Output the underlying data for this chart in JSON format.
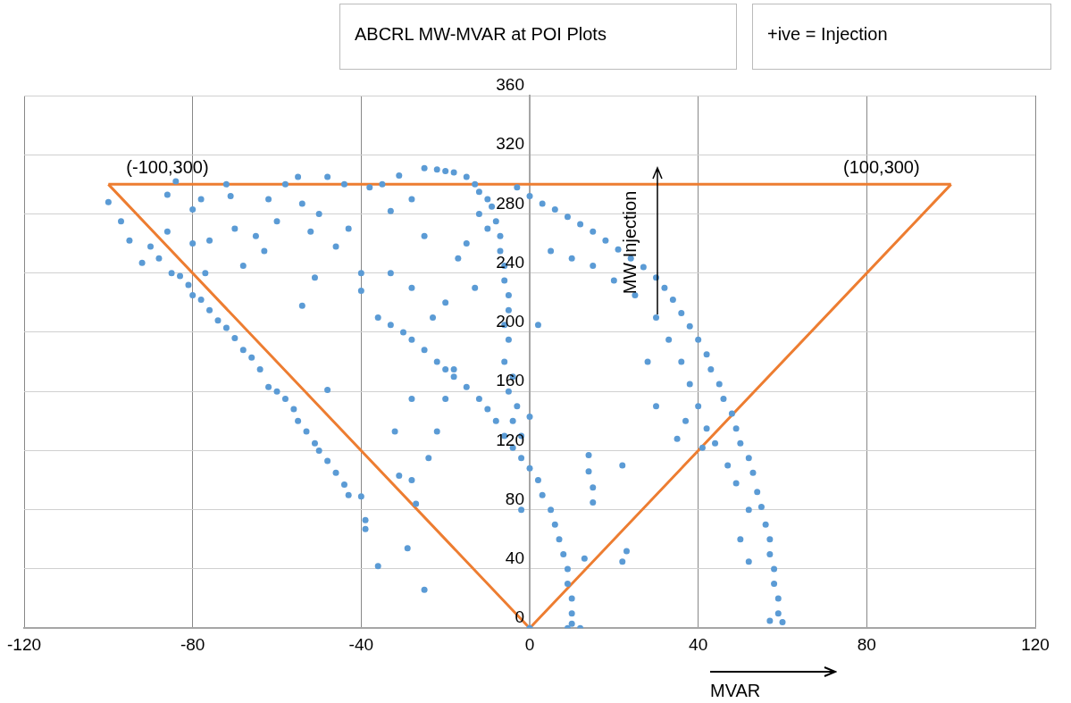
{
  "chart_data": {
    "type": "scatter",
    "title": "ABCRL MW-MVAR at POI Plots",
    "xlabel": "MVAR",
    "ylabel": "MW Injection",
    "annotations": [
      "+ive = Injection",
      {
        "text": "(-100,300)",
        "x": -100,
        "y": 300
      },
      {
        "text": "(100,300)",
        "x": 100,
        "y": 300
      }
    ],
    "xlim": [
      -120,
      120
    ],
    "xticks": [
      -120,
      -80,
      -40,
      0,
      40,
      80,
      120
    ],
    "ylim": [
      0,
      360
    ],
    "yticks": [
      0,
      40,
      80,
      120,
      160,
      200,
      240,
      280,
      320,
      360
    ],
    "grid": true,
    "marker": "circle",
    "series": [
      {
        "color": "#5b9bd5",
        "x": [
          -100,
          -97,
          -95,
          -92,
          -90,
          -88,
          -86,
          -85,
          -83,
          -81,
          -80,
          -78,
          -76,
          -74,
          -72,
          -70,
          -68,
          -66,
          -64,
          -62,
          -60,
          -58,
          -56,
          -55,
          -53,
          -51,
          -50,
          -48,
          -46,
          -44,
          -43,
          -40,
          -39,
          -39,
          -36,
          -29,
          -27,
          -25,
          -31,
          -48,
          -84,
          -86,
          -80,
          -80,
          -78,
          -76,
          -72,
          -71,
          -70,
          -68,
          -65,
          -63,
          -62,
          -60,
          -58,
          -55,
          -54,
          -52,
          -51,
          -50,
          -48,
          -46,
          -44,
          -43,
          -40,
          -38,
          -35,
          -33,
          -31,
          -54,
          -77,
          -40,
          -36,
          -33,
          -30,
          -28,
          -25,
          -22,
          -20,
          -18,
          -15,
          -12,
          -10,
          -8,
          -6,
          -4,
          -2,
          0,
          2,
          3,
          5,
          6,
          7,
          8,
          9,
          9,
          10,
          10,
          10,
          9,
          12,
          0,
          -25,
          -22,
          -20,
          -18,
          -15,
          -13,
          -12,
          -10,
          -9,
          -8,
          -7,
          -7,
          -6,
          -6,
          -5,
          -5,
          -6,
          -5,
          -6,
          -4,
          -5,
          -3,
          -4,
          -2,
          -10,
          -12,
          -15,
          -17,
          -13,
          -20,
          -23,
          -28,
          -33,
          -25,
          -28,
          -20,
          -28,
          -32,
          -24,
          -28,
          -22,
          -18,
          -3,
          0,
          3,
          6,
          9,
          12,
          15,
          18,
          21,
          24,
          27,
          30,
          32,
          34,
          36,
          38,
          40,
          42,
          43,
          45,
          46,
          48,
          49,
          50,
          52,
          53,
          54,
          55,
          56,
          57,
          57,
          58,
          58,
          59,
          59,
          60,
          57,
          5,
          10,
          15,
          20,
          25,
          30,
          33,
          36,
          38,
          40,
          42,
          44,
          47,
          41,
          37,
          35,
          30,
          28,
          49,
          52,
          50,
          52,
          2,
          0,
          14,
          14,
          15,
          15,
          22,
          23,
          22,
          13,
          -2
        ],
        "values": [
          288,
          275,
          262,
          247,
          258,
          250,
          268,
          240,
          238,
          232,
          225,
          222,
          215,
          208,
          203,
          196,
          188,
          183,
          175,
          163,
          160,
          155,
          148,
          140,
          133,
          125,
          120,
          113,
          105,
          97,
          90,
          89,
          73,
          67,
          42,
          54,
          84,
          26,
          103,
          161,
          302,
          293,
          283,
          260,
          290,
          262,
          300,
          292,
          270,
          245,
          265,
          255,
          290,
          275,
          300,
          305,
          287,
          268,
          237,
          280,
          305,
          258,
          300,
          270,
          240,
          298,
          300,
          282,
          306,
          218,
          240,
          228,
          210,
          205,
          200,
          195,
          188,
          180,
          175,
          170,
          163,
          155,
          148,
          140,
          130,
          122,
          115,
          108,
          100,
          90,
          80,
          70,
          60,
          50,
          40,
          30,
          20,
          10,
          3,
          0,
          0,
          0,
          311,
          310,
          309,
          308,
          305,
          300,
          295,
          290,
          285,
          275,
          265,
          255,
          245,
          235,
          225,
          215,
          205,
          195,
          180,
          170,
          160,
          150,
          140,
          130,
          270,
          280,
          260,
          250,
          230,
          220,
          210,
          230,
          240,
          265,
          290,
          155,
          155,
          133,
          115,
          100,
          133,
          175,
          298,
          292,
          287,
          283,
          278,
          273,
          268,
          262,
          256,
          250,
          244,
          237,
          230,
          222,
          213,
          204,
          195,
          185,
          175,
          165,
          155,
          145,
          135,
          125,
          115,
          105,
          92,
          82,
          70,
          60,
          50,
          40,
          30,
          20,
          10,
          4,
          5,
          255,
          250,
          245,
          235,
          225,
          210,
          195,
          180,
          165,
          150,
          135,
          125,
          110,
          122,
          140,
          128,
          150,
          180,
          98,
          80,
          60,
          45,
          205,
          143,
          117,
          106,
          95,
          85,
          110,
          52,
          45,
          47,
          80
        ]
      },
      {
        "type": "line",
        "color": "#ed7d31",
        "marker": "none",
        "line_style": "solid",
        "x": [
          -100,
          0,
          100
        ],
        "values": [
          300,
          0,
          300
        ]
      },
      {
        "type": "line",
        "color": "#ed7d31",
        "marker": "none",
        "line_style": "solid",
        "x": [
          -100,
          100
        ],
        "values": [
          300,
          300
        ]
      }
    ]
  }
}
